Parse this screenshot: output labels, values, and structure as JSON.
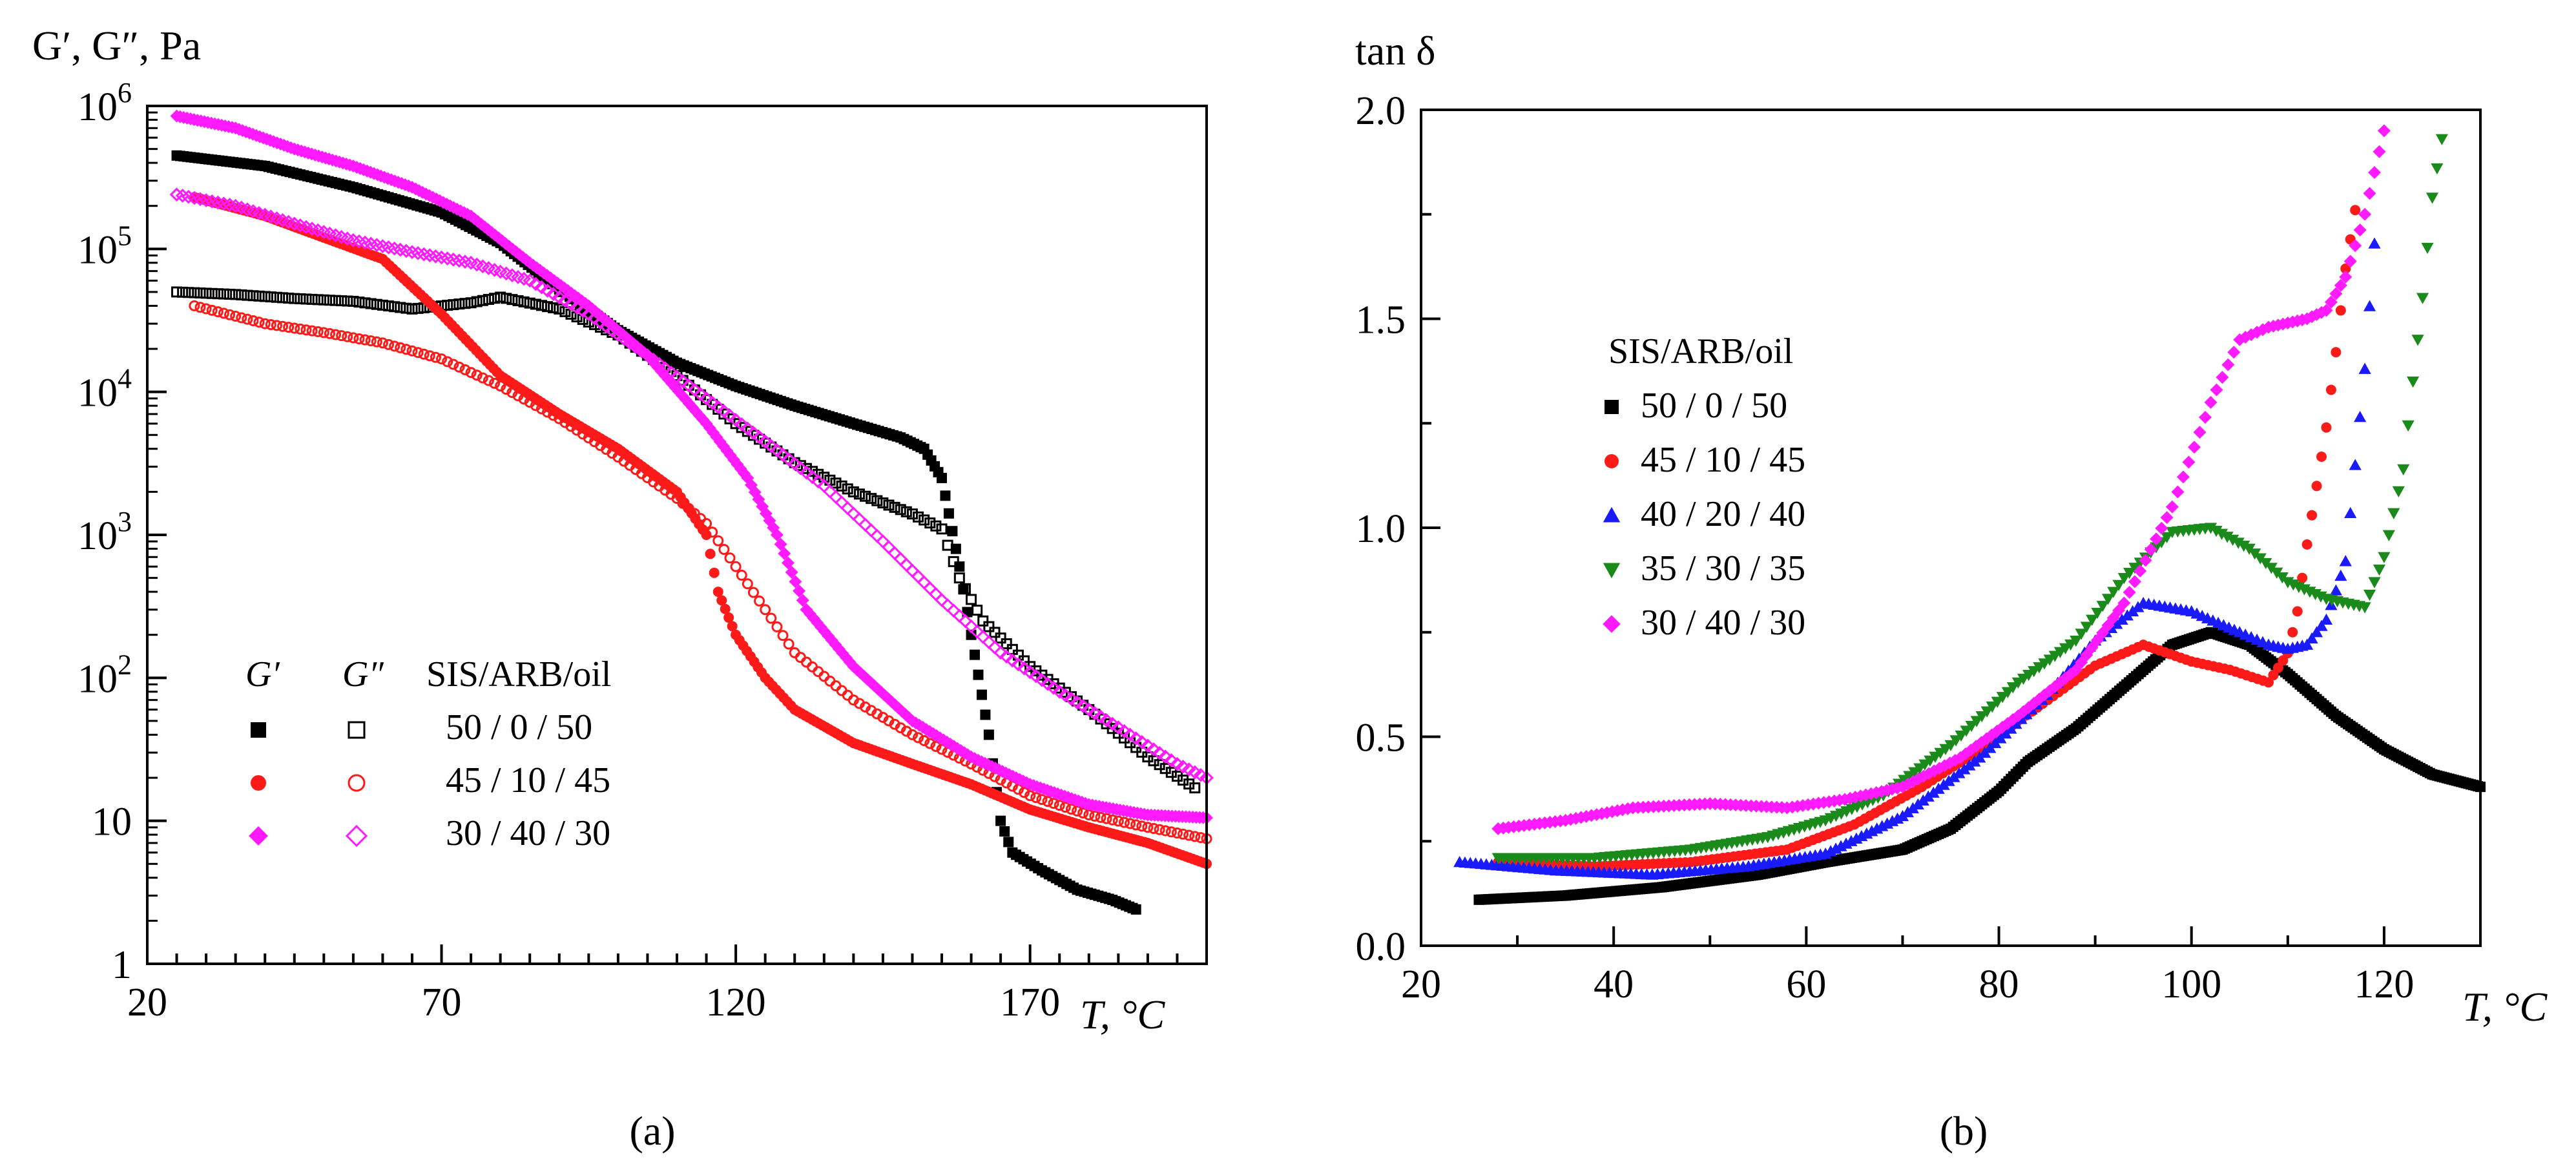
{
  "figure": {
    "panel_a_label": "(a)",
    "panel_b_label": "(b)"
  },
  "colors": {
    "black": "#000000",
    "red": "#ff1a1a",
    "blue": "#1a1aff",
    "green": "#1a8a1a",
    "magenta": "#ff1aff"
  },
  "chart_data": [
    {
      "id": "a",
      "type": "scatter",
      "yscale": "log",
      "title": "",
      "ylabel": "G′, G″, Pa",
      "xlabel": "T, °C",
      "xlim": [
        20,
        200
      ],
      "ylim": [
        1,
        1000000
      ],
      "xticks": [
        20,
        70,
        120,
        170
      ],
      "xtick_labels": [
        "20",
        "70",
        "120",
        "170"
      ],
      "yticks": [
        1,
        10,
        100,
        1000,
        10000,
        100000,
        1000000
      ],
      "ytick_labels": [
        "1",
        "10",
        "10^2",
        "10^3",
        "10^4",
        "10^5",
        "10^6"
      ],
      "legend": {
        "position": "lower-left",
        "header_gp": "G′",
        "header_gpp": "G″",
        "header_title": "SIS/ARB/oil",
        "entries": [
          "50 / 0 / 50",
          "45 / 10 / 45",
          "30 / 40 / 30"
        ]
      },
      "series": [
        {
          "name": "50 / 0 / 50 G′",
          "marker": "square-filled",
          "color": "black",
          "points": [
            [
              25,
              450000
            ],
            [
              40,
              380000
            ],
            [
              55,
              270000
            ],
            [
              70,
              180000
            ],
            [
              80,
              110000
            ],
            [
              90,
              52000
            ],
            [
              100,
              27000
            ],
            [
              110,
              16000
            ],
            [
              120,
              11000
            ],
            [
              130,
              8000
            ],
            [
              140,
              6000
            ],
            [
              148,
              4800
            ],
            [
              152,
              4000
            ],
            [
              155,
              2500
            ],
            [
              158,
              600
            ],
            [
              160,
              200
            ],
            [
              163,
              40
            ],
            [
              165,
              10
            ],
            [
              167,
              6
            ],
            [
              172,
              4.5
            ],
            [
              178,
              3.3
            ],
            [
              184,
              2.8
            ],
            [
              188,
              2.4
            ]
          ]
        },
        {
          "name": "50 / 0 / 50 G″",
          "marker": "square-open",
          "color": "black",
          "points": [
            [
              25,
              50000
            ],
            [
              35,
              48000
            ],
            [
              45,
              45000
            ],
            [
              55,
              43000
            ],
            [
              65,
              38000
            ],
            [
              75,
              42000
            ],
            [
              80,
              46000
            ],
            [
              90,
              38000
            ],
            [
              100,
              25000
            ],
            [
              110,
              13000
            ],
            [
              120,
              6000
            ],
            [
              130,
              3200
            ],
            [
              140,
              2000
            ],
            [
              150,
              1400
            ],
            [
              155,
              1100
            ],
            [
              158,
              500
            ],
            [
              162,
              250
            ],
            [
              170,
              120
            ],
            [
              180,
              60
            ],
            [
              190,
              28
            ],
            [
              198,
              17
            ]
          ]
        },
        {
          "name": "45 / 10 / 45 G′",
          "marker": "circle-filled",
          "color": "red",
          "points": [
            [
              28,
              230000
            ],
            [
              40,
              170000
            ],
            [
              50,
              120000
            ],
            [
              60,
              85000
            ],
            [
              70,
              35000
            ],
            [
              80,
              13000
            ],
            [
              90,
              7000
            ],
            [
              100,
              4000
            ],
            [
              110,
              2000
            ],
            [
              115,
              1000
            ],
            [
              117,
              400
            ],
            [
              120,
              200
            ],
            [
              125,
              100
            ],
            [
              130,
              60
            ],
            [
              140,
              35
            ],
            [
              150,
              25
            ],
            [
              160,
              18
            ],
            [
              170,
              12
            ],
            [
              180,
              9
            ],
            [
              190,
              7
            ],
            [
              200,
              5
            ]
          ]
        },
        {
          "name": "45 / 10 / 45 G″",
          "marker": "circle-open",
          "color": "red",
          "points": [
            [
              28,
              40000
            ],
            [
              40,
              30000
            ],
            [
              50,
              26000
            ],
            [
              60,
              22000
            ],
            [
              70,
              17000
            ],
            [
              80,
              11000
            ],
            [
              90,
              6500
            ],
            [
              100,
              3500
            ],
            [
              110,
              1800
            ],
            [
              115,
              1200
            ],
            [
              120,
              600
            ],
            [
              125,
              300
            ],
            [
              130,
              150
            ],
            [
              140,
              70
            ],
            [
              150,
              40
            ],
            [
              160,
              25
            ],
            [
              170,
              15
            ],
            [
              180,
              11
            ],
            [
              190,
              9
            ],
            [
              200,
              7.5
            ]
          ]
        },
        {
          "name": "30 / 40 / 30 G′",
          "marker": "diamond-filled",
          "color": "magenta",
          "points": [
            [
              25,
              850000
            ],
            [
              35,
              700000
            ],
            [
              45,
              500000
            ],
            [
              55,
              380000
            ],
            [
              65,
              270000
            ],
            [
              75,
              170000
            ],
            [
              85,
              80000
            ],
            [
              95,
              40000
            ],
            [
              105,
              18000
            ],
            [
              115,
              6000
            ],
            [
              122,
              2500
            ],
            [
              127,
              1000
            ],
            [
              132,
              300
            ],
            [
              140,
              120
            ],
            [
              150,
              50
            ],
            [
              160,
              28
            ],
            [
              170,
              18
            ],
            [
              180,
              13
            ],
            [
              190,
              11
            ],
            [
              200,
              10.5
            ]
          ]
        },
        {
          "name": "30 / 40 / 30 G″",
          "marker": "diamond-open",
          "color": "magenta",
          "points": [
            [
              25,
              240000
            ],
            [
              35,
              200000
            ],
            [
              45,
              150000
            ],
            [
              55,
              115000
            ],
            [
              65,
              95000
            ],
            [
              75,
              80000
            ],
            [
              85,
              60000
            ],
            [
              95,
              35000
            ],
            [
              105,
              18000
            ],
            [
              115,
              9000
            ],
            [
              125,
              4500
            ],
            [
              135,
              2200
            ],
            [
              145,
              900
            ],
            [
              155,
              350
            ],
            [
              165,
              150
            ],
            [
              175,
              80
            ],
            [
              185,
              45
            ],
            [
              195,
              25
            ],
            [
              200,
              20
            ]
          ]
        }
      ]
    },
    {
      "id": "b",
      "type": "scatter",
      "title": "",
      "ylabel": "tan δ",
      "xlabel": "T, °C",
      "xlim": [
        20,
        130
      ],
      "ylim": [
        0,
        2
      ],
      "xticks": [
        20,
        40,
        60,
        80,
        100,
        120
      ],
      "xtick_labels": [
        "20",
        "40",
        "60",
        "80",
        "100",
        "120"
      ],
      "yticks": [
        0,
        0.5,
        1,
        1.5,
        2
      ],
      "ytick_labels": [
        "0.0",
        "0.5",
        "1.0",
        "1.5",
        "2.0"
      ],
      "legend": {
        "position": "upper-left",
        "title": "SIS/ARB/oil",
        "entries": [
          "50 / 0 / 50",
          "45 / 10 / 45",
          "40 / 20 / 40",
          "35 / 30 / 35",
          "30 / 40 / 30"
        ]
      },
      "series": [
        {
          "name": "50 / 0 / 50",
          "marker": "square-filled",
          "color": "black",
          "points": [
            [
              26,
              0.11
            ],
            [
              35,
              0.12
            ],
            [
              45,
              0.14
            ],
            [
              55,
              0.17
            ],
            [
              62,
              0.2
            ],
            [
              70,
              0.23
            ],
            [
              75,
              0.28
            ],
            [
              80,
              0.37
            ],
            [
              83,
              0.44
            ],
            [
              88,
              0.52
            ],
            [
              93,
              0.62
            ],
            [
              98,
              0.72
            ],
            [
              102,
              0.75
            ],
            [
              106,
              0.72
            ],
            [
              110,
              0.65
            ],
            [
              115,
              0.55
            ],
            [
              120,
              0.47
            ],
            [
              125,
              0.41
            ],
            [
              130,
              0.38
            ]
          ]
        },
        {
          "name": "45 / 10 / 45",
          "marker": "circle-filled",
          "color": "red",
          "points": [
            [
              28,
              0.2
            ],
            [
              38,
              0.19
            ],
            [
              48,
              0.2
            ],
            [
              58,
              0.23
            ],
            [
              65,
              0.29
            ],
            [
              72,
              0.38
            ],
            [
              78,
              0.47
            ],
            [
              84,
              0.57
            ],
            [
              90,
              0.67
            ],
            [
              95,
              0.72
            ],
            [
              100,
              0.68
            ],
            [
              104,
              0.66
            ],
            [
              108,
              0.63
            ],
            [
              110,
              0.7
            ],
            [
              111,
              0.8
            ],
            [
              112,
              0.96
            ],
            [
              113,
              1.1
            ],
            [
              114,
              1.24
            ],
            [
              115,
              1.42
            ],
            [
              116,
              1.62
            ],
            [
              117,
              1.76
            ]
          ]
        },
        {
          "name": "40 / 20 / 40",
          "marker": "triangle-up-filled",
          "color": "blue",
          "points": [
            [
              24,
              0.2
            ],
            [
              34,
              0.18
            ],
            [
              44,
              0.17
            ],
            [
              54,
              0.19
            ],
            [
              62,
              0.22
            ],
            [
              70,
              0.31
            ],
            [
              78,
              0.45
            ],
            [
              85,
              0.6
            ],
            [
              90,
              0.73
            ],
            [
              95,
              0.82
            ],
            [
              100,
              0.8
            ],
            [
              105,
              0.75
            ],
            [
              108,
              0.72
            ],
            [
              110,
              0.71
            ],
            [
              112,
              0.72
            ],
            [
              114,
              0.78
            ],
            [
              116,
              0.92
            ],
            [
              117,
              1.15
            ],
            [
              118,
              1.38
            ],
            [
              119,
              1.68
            ]
          ]
        },
        {
          "name": "35 / 30 / 35",
          "marker": "triangle-down-filled",
          "color": "green",
          "points": [
            [
              28,
              0.21
            ],
            [
              38,
              0.21
            ],
            [
              48,
              0.23
            ],
            [
              56,
              0.26
            ],
            [
              62,
              0.3
            ],
            [
              68,
              0.36
            ],
            [
              75,
              0.48
            ],
            [
              82,
              0.63
            ],
            [
              88,
              0.73
            ],
            [
              93,
              0.88
            ],
            [
              98,
              0.99
            ],
            [
              102,
              1.0
            ],
            [
              106,
              0.95
            ],
            [
              110,
              0.87
            ],
            [
              114,
              0.83
            ],
            [
              118,
              0.81
            ],
            [
              120,
              0.93
            ],
            [
              122,
              1.14
            ],
            [
              123,
              1.35
            ],
            [
              124,
              1.55
            ],
            [
              125,
              1.79
            ],
            [
              126,
              1.93
            ]
          ]
        },
        {
          "name": "30 / 40 / 30",
          "marker": "diamond-filled",
          "color": "magenta",
          "points": [
            [
              28,
              0.28
            ],
            [
              35,
              0.3
            ],
            [
              42,
              0.33
            ],
            [
              50,
              0.34
            ],
            [
              58,
              0.33
            ],
            [
              64,
              0.35
            ],
            [
              70,
              0.38
            ],
            [
              76,
              0.45
            ],
            [
              82,
              0.55
            ],
            [
              88,
              0.66
            ],
            [
              93,
              0.82
            ],
            [
              98,
              1.05
            ],
            [
              102,
              1.3
            ],
            [
              105,
              1.45
            ],
            [
              108,
              1.48
            ],
            [
              110,
              1.49
            ],
            [
              112,
              1.5
            ],
            [
              114,
              1.52
            ],
            [
              116,
              1.6
            ],
            [
              118,
              1.75
            ],
            [
              120,
              1.95
            ]
          ]
        }
      ]
    }
  ]
}
